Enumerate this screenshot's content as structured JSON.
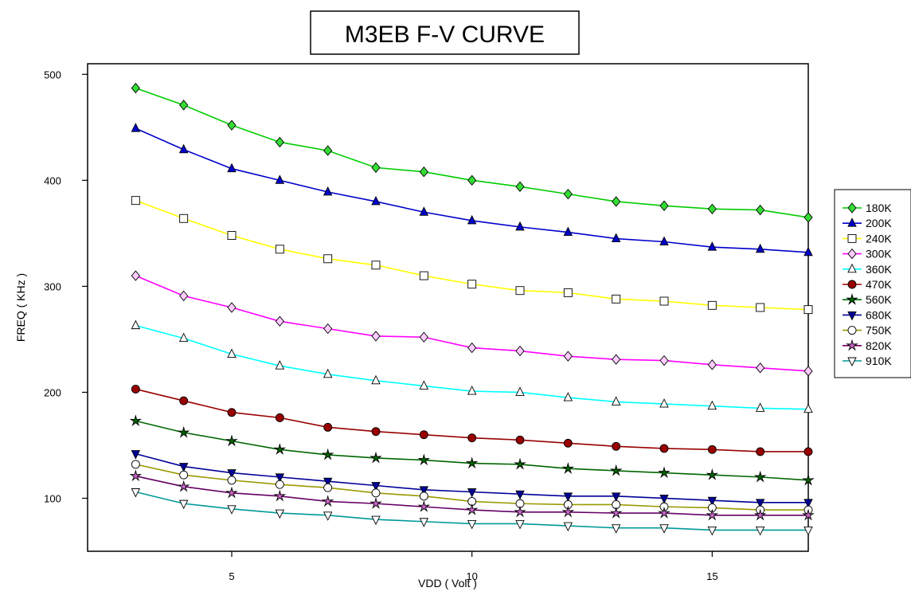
{
  "chart_data": {
    "type": "line",
    "title": "M3EB F-V CURVE",
    "xlabel": "VDD ( Volt )",
    "ylabel": "FREQ ( KHz )",
    "xlim": [
      2,
      17
    ],
    "ylim": [
      50,
      510
    ],
    "xticks": [
      5,
      10,
      15
    ],
    "yticks": [
      100,
      200,
      300,
      400,
      500
    ],
    "grid": false,
    "legend": "right",
    "x": [
      3,
      4,
      5,
      6,
      7,
      8,
      9,
      10,
      11,
      12,
      13,
      14,
      15,
      16,
      17
    ],
    "series": [
      {
        "name": "180K",
        "color": "#00cc00",
        "marker": "diamond",
        "fill": "#33dd33",
        "values": [
          487,
          471,
          452,
          436,
          428,
          412,
          408,
          400,
          394,
          387,
          380,
          376,
          373,
          372,
          365
        ]
      },
      {
        "name": "200K",
        "color": "#0000cc",
        "marker": "triangle-up",
        "fill": "#0000cc",
        "values": [
          449,
          429,
          411,
          400,
          389,
          380,
          370,
          362,
          356,
          351,
          345,
          342,
          337,
          335,
          332
        ]
      },
      {
        "name": "240K",
        "color": "#ffff00",
        "marker": "square",
        "fill": "#ffffff",
        "values": [
          381,
          364,
          348,
          335,
          326,
          320,
          310,
          302,
          296,
          294,
          288,
          286,
          282,
          280,
          278
        ]
      },
      {
        "name": "300K",
        "color": "#ff00ff",
        "marker": "diamond",
        "fill": "#ffccff",
        "values": [
          310,
          291,
          280,
          267,
          260,
          253,
          252,
          242,
          239,
          234,
          231,
          230,
          226,
          223,
          220
        ]
      },
      {
        "name": "360K",
        "color": "#00ffff",
        "marker": "triangle-up",
        "fill": "#ffffff",
        "values": [
          263,
          251,
          236,
          225,
          217,
          211,
          206,
          201,
          200,
          195,
          191,
          189,
          187,
          185,
          184
        ]
      },
      {
        "name": "470K",
        "color": "#990000",
        "marker": "circle",
        "fill": "#990000",
        "values": [
          203,
          192,
          181,
          176,
          167,
          163,
          160,
          157,
          155,
          152,
          149,
          147,
          146,
          144,
          144
        ]
      },
      {
        "name": "560K",
        "color": "#006600",
        "marker": "star",
        "fill": "#006600",
        "values": [
          173,
          162,
          154,
          146,
          141,
          138,
          136,
          133,
          132,
          128,
          126,
          124,
          122,
          120,
          117
        ]
      },
      {
        "name": "680K",
        "color": "#000099",
        "marker": "triangle-down",
        "fill": "#000099",
        "values": [
          142,
          130,
          124,
          120,
          116,
          112,
          108,
          106,
          104,
          102,
          102,
          100,
          98,
          96,
          96
        ]
      },
      {
        "name": "750K",
        "color": "#999900",
        "marker": "circle",
        "fill": "#ffffff",
        "values": [
          132,
          122,
          117,
          113,
          110,
          105,
          102,
          97,
          95,
          94,
          94,
          92,
          91,
          89,
          89
        ]
      },
      {
        "name": "820K",
        "color": "#660066",
        "marker": "star",
        "fill": "#cc66cc",
        "values": [
          121,
          111,
          105,
          102,
          97,
          95,
          92,
          89,
          87,
          87,
          86,
          86,
          84,
          84,
          84
        ]
      },
      {
        "name": "910K",
        "color": "#009999",
        "marker": "triangle-down",
        "fill": "#ffffff",
        "values": [
          106,
          95,
          90,
          86,
          84,
          80,
          78,
          76,
          76,
          74,
          72,
          72,
          70,
          70,
          70
        ]
      }
    ]
  }
}
